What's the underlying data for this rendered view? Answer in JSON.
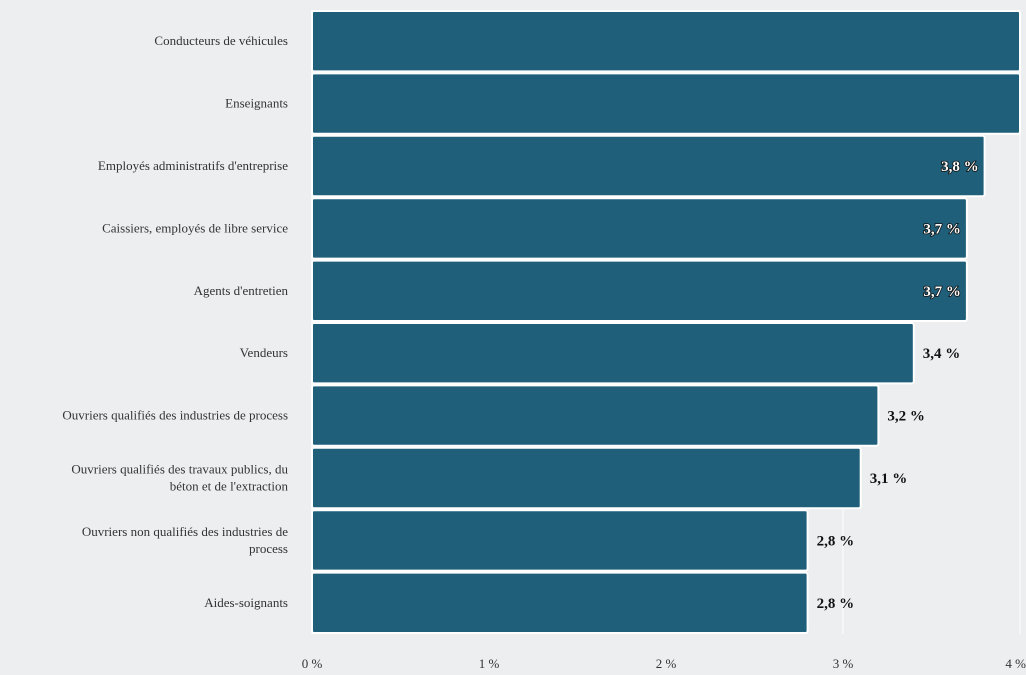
{
  "chart_data": {
    "type": "bar",
    "orientation": "horizontal",
    "categories": [
      "Conducteurs de véhicules",
      "Enseignants",
      "Employés administratifs d'entreprise",
      "Caissiers, employés de libre service",
      "Agents d'entretien",
      "Vendeurs",
      "Ouvriers qualifiés des industries de process",
      "Ouvriers qualifiés des travaux publics, du béton et de l'extraction",
      "Ouvriers non qualifiés des industries de process",
      "Aides-soignants"
    ],
    "values": [
      4.0,
      4.0,
      3.8,
      3.7,
      3.7,
      3.4,
      3.2,
      3.1,
      2.8,
      2.8
    ],
    "value_labels": [
      "",
      "",
      "3,8 %",
      "3,7 %",
      "3,7 %",
      "3,4 %",
      "3,2 %",
      "3,1 %",
      "2,8 %",
      "2,8 %"
    ],
    "xlim": [
      0,
      4
    ],
    "x_ticks": [
      0,
      1,
      2,
      3,
      4
    ],
    "x_tick_labels": [
      "0 %",
      "1 %",
      "2 %",
      "3 %",
      "4 %"
    ],
    "grid": true,
    "bar_color": "#1f5f7a",
    "background_color": "#eceef0",
    "title": "",
    "xlabel": "",
    "ylabel": ""
  }
}
